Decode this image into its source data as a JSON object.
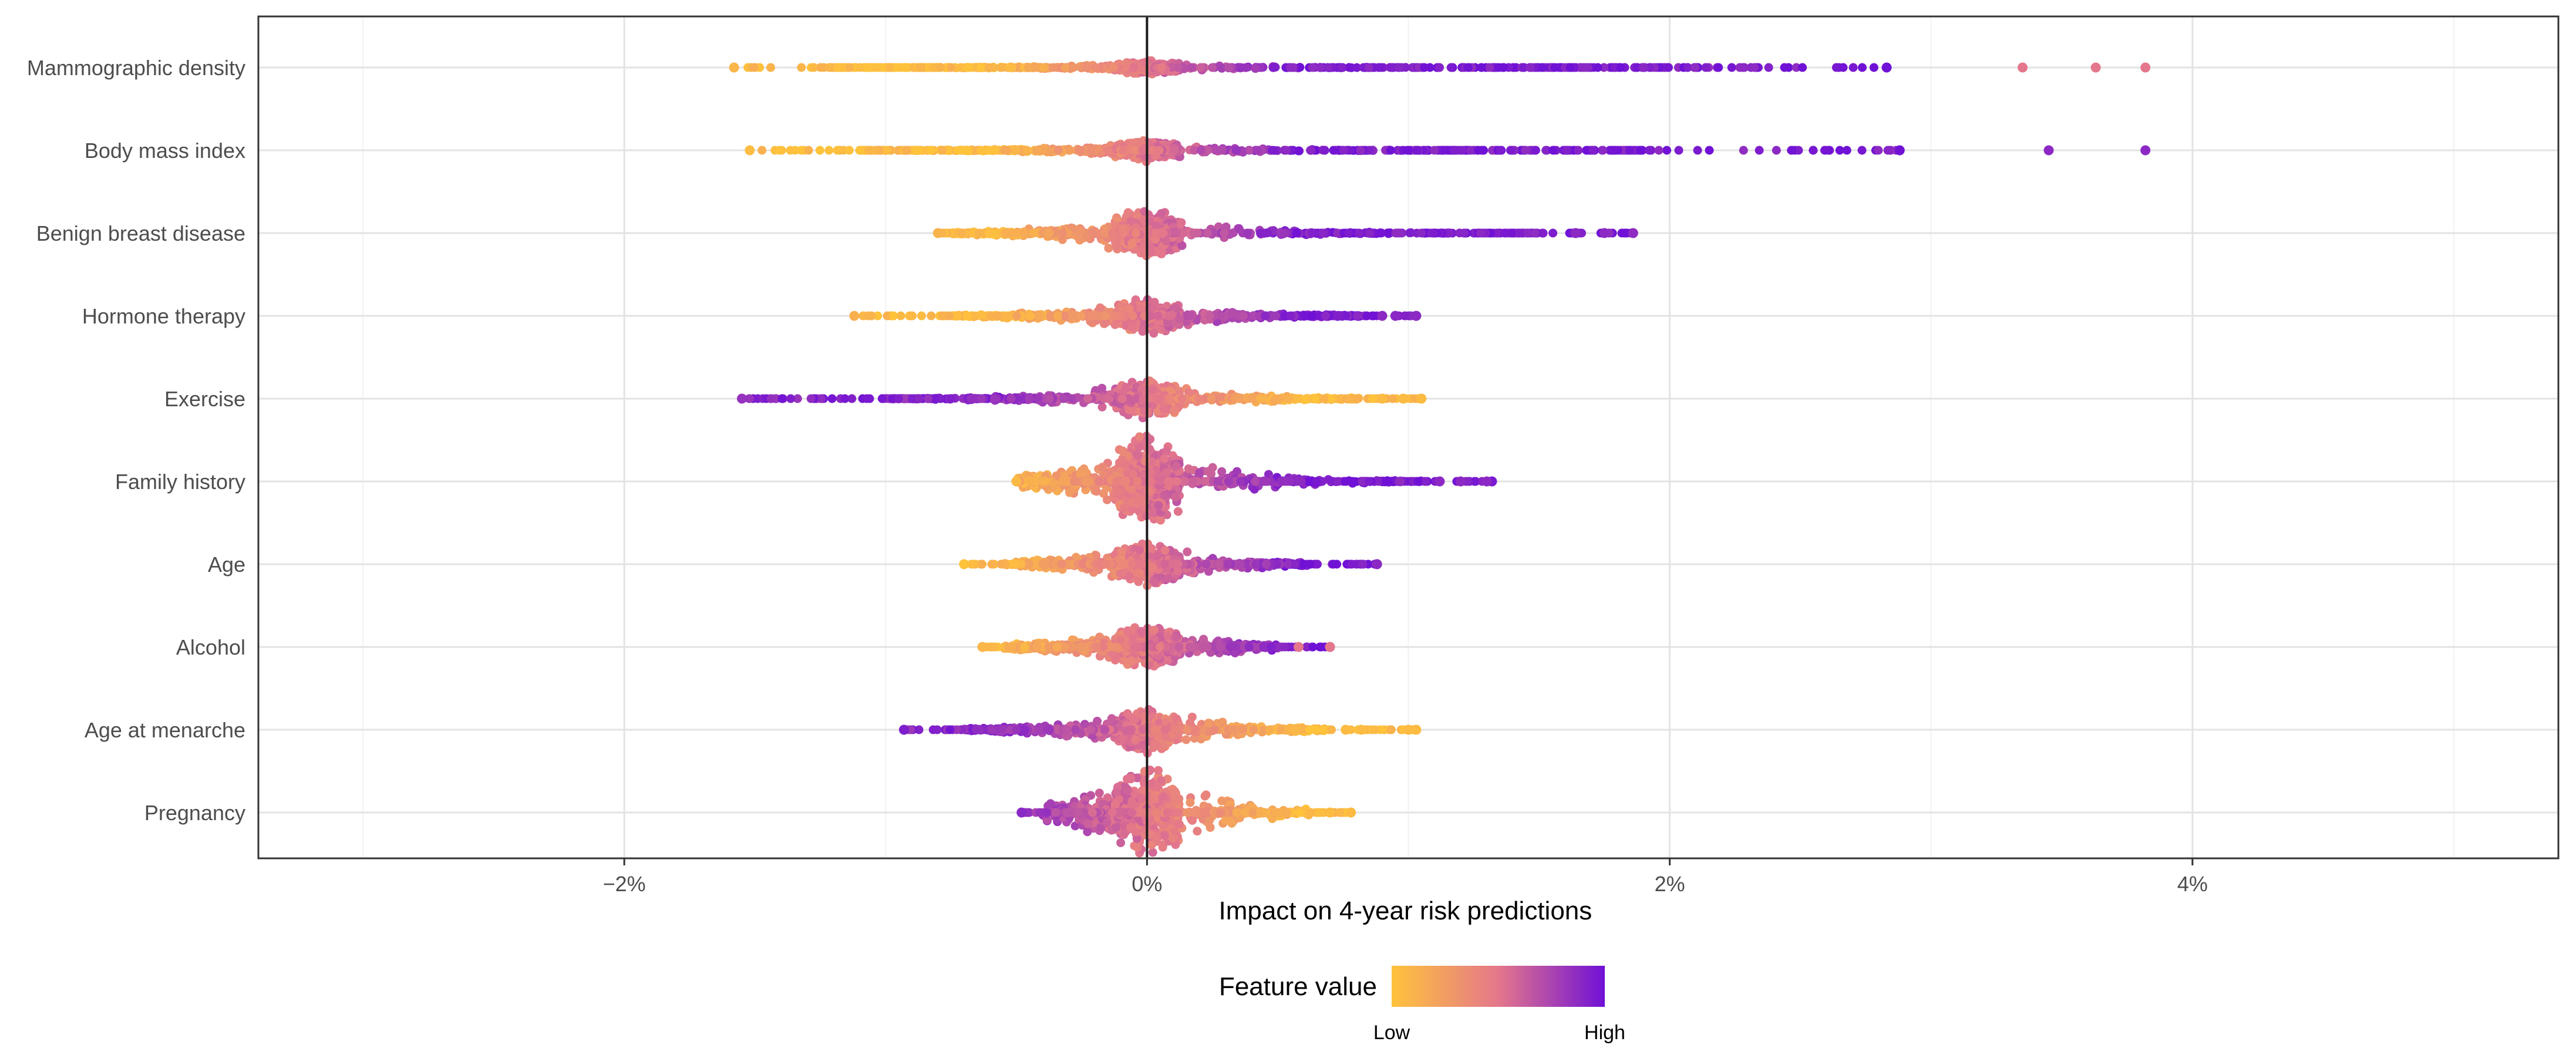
{
  "chart_data": {
    "type": "scatter",
    "subtype": "beeswarm",
    "title": "",
    "xlabel": "Impact on 4-year risk predictions",
    "ylabel": "",
    "xlim": [
      -3.4,
      5.4
    ],
    "x_ticks": [
      {
        "value": -2,
        "label": "−2%"
      },
      {
        "value": 0,
        "label": "0%"
      },
      {
        "value": 2,
        "label": "2%"
      },
      {
        "value": 4,
        "label": "4%"
      }
    ],
    "minor_gridlines": [
      -3,
      -1,
      1,
      3,
      5
    ],
    "reference_line": 0,
    "grid": true,
    "legend": {
      "title": "Feature value",
      "low_label": "Low",
      "high_label": "High",
      "position": "bottom-center",
      "colors": [
        "#ffc33b",
        "#e4778b",
        "#7011d6"
      ]
    },
    "features": [
      {
        "name": "Mammographic density",
        "min": -1.58,
        "max": 2.83,
        "bulk_low": -1.2,
        "bulk_high": 2.2,
        "width": 0.12,
        "low_side": "low",
        "outliers": [
          3.35,
          3.63,
          3.82
        ],
        "outlier_colors": [
          "mid",
          "mid",
          "mid"
        ]
      },
      {
        "name": "Body mass index",
        "min": -1.52,
        "max": 2.88,
        "bulk_low": -1.1,
        "bulk_high": 1.9,
        "width": 0.18,
        "low_side": "low",
        "outliers": [
          3.45,
          3.82
        ],
        "outlier_colors": [
          "high",
          "high"
        ]
      },
      {
        "name": "Benign breast disease",
        "min": -0.8,
        "max": 1.86,
        "bulk_low": -0.75,
        "bulk_high": 1.52,
        "width": 0.45,
        "low_side": "low",
        "outliers": [
          1.64,
          1.75
        ],
        "outlier_colors": [
          "high",
          "high"
        ]
      },
      {
        "name": "Hormone therapy",
        "min": -1.12,
        "max": 1.03,
        "bulk_low": -0.75,
        "bulk_high": 0.82,
        "width": 0.32,
        "low_side": "low",
        "outliers": [
          0.9,
          0.95,
          1.03
        ],
        "outlier_colors": [
          "high",
          "high",
          "high"
        ]
      },
      {
        "name": "Exercise",
        "min": -1.55,
        "max": 1.05,
        "bulk_low": -1.0,
        "bulk_high": 0.82,
        "width": 0.35,
        "low_side": "high",
        "outliers": [
          0.9,
          0.98,
          1.05
        ],
        "outlier_colors": [
          "low",
          "low",
          "low"
        ]
      },
      {
        "name": "Family history",
        "min": -0.5,
        "max": 1.32,
        "bulk_low": -0.5,
        "bulk_high": 1.05,
        "width": 0.8,
        "low_side": "low",
        "outliers": [
          1.12,
          1.2,
          1.3
        ],
        "outlier_colors": [
          "high",
          "high",
          "high"
        ]
      },
      {
        "name": "Age",
        "min": -0.7,
        "max": 0.88,
        "bulk_low": -0.55,
        "bulk_high": 0.62,
        "width": 0.38,
        "low_side": "low",
        "outliers": [
          0.88
        ],
        "outlier_colors": [
          "high"
        ]
      },
      {
        "name": "Alcohol",
        "min": -0.63,
        "max": 0.7,
        "bulk_low": -0.55,
        "bulk_high": 0.5,
        "width": 0.4,
        "low_side": "low",
        "outliers": [
          0.58,
          0.7
        ],
        "outlier_colors": [
          "mid",
          "mid"
        ]
      },
      {
        "name": "Age at menarche",
        "min": -0.93,
        "max": 1.03,
        "bulk_low": -0.7,
        "bulk_high": 0.68,
        "width": 0.4,
        "low_side": "high",
        "outliers": [
          0.76,
          0.82,
          1.0,
          1.03
        ],
        "outlier_colors": [
          "low",
          "low",
          "low",
          "low"
        ]
      },
      {
        "name": "Pregnancy",
        "min": -0.48,
        "max": 0.78,
        "bulk_low": -0.4,
        "bulk_high": 0.62,
        "width": 0.8,
        "low_side": "high",
        "outliers": [
          0.7,
          0.78
        ],
        "outlier_colors": [
          "low",
          "low"
        ]
      }
    ]
  }
}
